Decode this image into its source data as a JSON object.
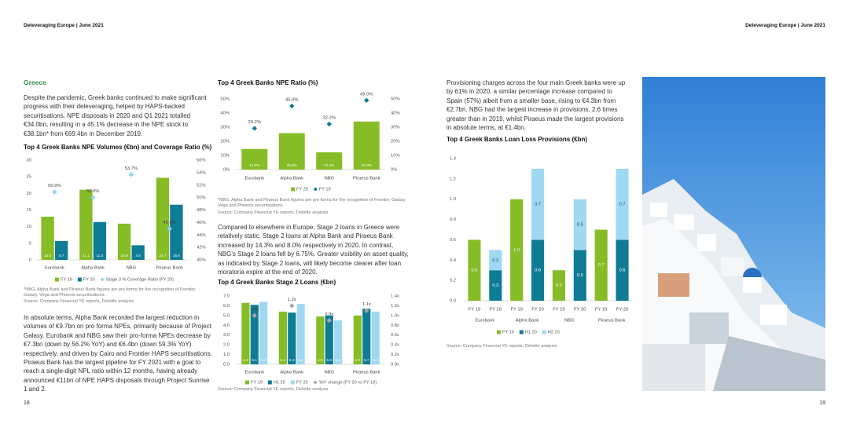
{
  "header": {
    "left": "Deleveraging Europe | June 2021",
    "right": "Deleveraging Europe | June 2021"
  },
  "section": "Greece",
  "paragraphs": [
    "Despite the pandemic, Greek banks continued to make significant progress with their deleveraging, helped by HAPS-backed securitisations. NPE disposals in 2020 and Q1 2021 totalled €34.0bn, resulting in a 45.1% decrease in the NPE stock to €38.1bn* from €69.4bn in December 2019.",
    "In absolute terms, Alpha Bank recorded the largest reduction in volumes of €9.7bn on pro forma NPEs, primarily because of Project Galaxy. Eurobank and NBG saw their pro-forma NPEs decrease by €7.3bn (down by 56.2% YoY) and €6.4bn (down 59.3% YoY) respectively, and driven by Cairo and Frontier HAPS securitisations. Piraeus Bank has the largest pipeline for FY 2021 with a goal to reach a single-digit NPL ratio within 12 months, having already announced €11bn of NPE HAPS disposals through Project Sunrise 1 and 2.",
    "Compared to elsewhere in Europe, Stage 2 loans in Greece were relatively static. Stage 2 loans at Alpha Bank and Piraeus Bank increased by 14.3% and 8.0% respectively in 2020. In contrast, NBG's Stage 2 loans fell by 6.75%. Greater visibility on asset quality, as indicated by Stage 2 loans, will likely become clearer after loan moratoria expire at the end of 2020.",
    "Provisioning charges across the four main Greek banks were up by 61% in 2020, a similar percentage increase compared to Spain (57%) albeit from a smaller base, rising to €4.3bn from €2.7bn. NBG had the largest increase in provisions, 2.6 times greater than in 2019, whilst Piraeus made the largest provisions in absolute terms, at €1.4bn."
  ],
  "page_numbers": [
    "18",
    "19"
  ],
  "charts": [
    {
      "type": "bar",
      "title": "Top 4 Greek Banks NPE Volumes (€bn) and Coverage Ratio (%)",
      "categories": [
        "Eurobank",
        "Alpha Bank",
        "NBG",
        "Piraeus Bank"
      ],
      "series": [
        {
          "name": "FY 19",
          "color": "#86bc25",
          "values": [
            13.0,
            21.1,
            10.9,
            24.7
          ],
          "value_labels": [
            "13.0",
            "21.1",
            "10.9",
            "24.7"
          ]
        },
        {
          "name": "FY 20",
          "color": "#0f7c96",
          "values": [
            5.7,
            11.4,
            4.4,
            16.6
          ],
          "value_labels": [
            "5.7",
            "11.4",
            "4.4",
            "16.6"
          ]
        },
        {
          "name": "Stage 3 % Coverage Ratio (FY 20)",
          "color": "#8fd3f0",
          "marker": "diamond",
          "axis": "y2",
          "values": [
            50.9,
            50.0,
            53.7,
            45.0
          ],
          "value_labels": [
            "50.9%",
            "50.0%",
            "53.7%",
            "45.0%"
          ]
        }
      ],
      "ylim": [
        0,
        30
      ],
      "yticks": [
        0,
        5,
        10,
        15,
        20,
        25,
        30
      ],
      "y2lim": [
        40,
        56
      ],
      "y2ticks": [
        {
          "value": 40,
          "label": "40%"
        },
        {
          "value": 42,
          "label": "42%"
        },
        {
          "value": 44,
          "label": "44%"
        },
        {
          "value": 46,
          "label": "46%"
        },
        {
          "value": 48,
          "label": "48%"
        },
        {
          "value": 50,
          "label": "50%"
        },
        {
          "value": 52,
          "label": "52%"
        },
        {
          "value": 54,
          "label": "54%"
        },
        {
          "value": 56,
          "label": "56%"
        }
      ],
      "note": "*NBG, Alpha Bank and Piraeus Bank figures are pro forma for the recognition of Frontier, Galaxy, Vega and Phoenix securitisations.",
      "source": "Source: Company Financial YE reports, Deloitte analysis"
    },
    {
      "type": "bar",
      "title": "Top 4 Greek Banks NPE Ratio (%)",
      "categories": [
        "Eurobank",
        "Alpha Bank",
        "NBG",
        "Piraeus Bank"
      ],
      "series": [
        {
          "name": "FY 20",
          "color": "#86bc25",
          "values": [
            14.6,
            25.8,
            12.2,
            34.0
          ],
          "value_labels": [
            "14.6%",
            "25.8%",
            "12.2%",
            "34.0%"
          ]
        },
        {
          "name": "FY 19",
          "color": "#0f7c96",
          "marker": "diamond",
          "values": [
            29.2,
            45.0,
            32.2,
            49.0
          ],
          "value_labels": [
            "29.2%",
            "45.0%",
            "32.2%",
            "49.0%"
          ]
        }
      ],
      "ylim": [
        0,
        50
      ],
      "yticks": [
        {
          "value": 0,
          "label": "0%"
        },
        {
          "value": 10,
          "label": "10%"
        },
        {
          "value": 20,
          "label": "20%"
        },
        {
          "value": 30,
          "label": "30%"
        },
        {
          "value": 40,
          "label": "40%"
        },
        {
          "value": 50,
          "label": "50%"
        }
      ],
      "y2lim": [
        0,
        50
      ],
      "y2ticks": [
        {
          "value": 0,
          "label": "0%"
        },
        {
          "value": 10,
          "label": "10%"
        },
        {
          "value": 20,
          "label": "20%"
        },
        {
          "value": 30,
          "label": "30%"
        },
        {
          "value": 40,
          "label": "40%"
        },
        {
          "value": 50,
          "label": "50%"
        }
      ],
      "note": "*NBG, Alpha Bank and Piraeus Bank figures are pro forma for the recognition of Frontier, Galaxy, Vega and Phoenix securitisations.",
      "source": "Source: Company Financial YE reports, Deloitte analysis"
    },
    {
      "type": "bar",
      "title": "Top 4 Greek Banks Stage 2 Loans (€bn)",
      "categories": [
        "Eurobank",
        "Alpha Bank",
        "NBG",
        "Piraeus Bank"
      ],
      "series": [
        {
          "name": "FY 19",
          "color": "#86bc25",
          "values": [
            6.3,
            5.4,
            4.9,
            5.0
          ],
          "value_labels": [
            "6.3",
            "5.4",
            "4.9",
            "5.0"
          ]
        },
        {
          "name": "H1 20",
          "color": "#0f7c96",
          "values": [
            6.1,
            5.3,
            5.0,
            5.7
          ],
          "value_labels": [
            "6.1",
            "5.3",
            "5.0",
            "5.7"
          ]
        },
        {
          "name": "FY 20",
          "color": "#9fd8f3",
          "values": [
            6.4,
            6.2,
            4.5,
            5.4
          ],
          "value_labels": [
            "6.4",
            "6.2",
            "4.5",
            "5.4"
          ]
        },
        {
          "name": "YoY change (FY 20 vs FY 19)",
          "color": "#a6a6a6",
          "marker": "diamond",
          "axis": "y2",
          "values": [
            1.0,
            1.2,
            0.9,
            1.1
          ],
          "value_labels": [
            "1.0x",
            "1.2x",
            "0.9x",
            "1.1x"
          ]
        }
      ],
      "ylim": [
        0,
        7
      ],
      "yticks": [
        {
          "value": 0,
          "label": "0.0"
        },
        {
          "value": 1,
          "label": "1.0"
        },
        {
          "value": 2,
          "label": "2.0"
        },
        {
          "value": 3,
          "label": "3.0"
        },
        {
          "value": 4,
          "label": "4.0"
        },
        {
          "value": 5,
          "label": "5.0"
        },
        {
          "value": 6,
          "label": "6.0"
        },
        {
          "value": 7,
          "label": "7.0"
        }
      ],
      "y2lim": [
        0,
        1.4
      ],
      "y2ticks": [
        {
          "value": 0,
          "label": "0.0x"
        },
        {
          "value": 0.2,
          "label": "0.2x"
        },
        {
          "value": 0.4,
          "label": "0.4x"
        },
        {
          "value": 0.6,
          "label": "0.6x"
        },
        {
          "value": 0.8,
          "label": "0.8x"
        },
        {
          "value": 1.0,
          "label": "1.0x"
        },
        {
          "value": 1.2,
          "label": "1.2x"
        },
        {
          "value": 1.4,
          "label": "1.4x"
        }
      ],
      "source": "Source: Company Financial YE reports, Deloitte analysis"
    },
    {
      "type": "stacked_bar",
      "title": "Top 4 Greek Banks Loan Loss Provisions (€bn)",
      "categories": [
        "FY 19",
        "FY 20",
        "FY 19",
        "FY 20",
        "FY 19",
        "FY 20",
        "FY 19",
        "FY 20"
      ],
      "groups": [
        "Eurobank",
        "Alpha Bank",
        "NBG",
        "Piraeus Bank"
      ],
      "series": [
        {
          "name": "FY 19",
          "color": "#86bc25",
          "values": [
            0.6,
            null,
            1.0,
            null,
            0.3,
            null,
            0.7,
            null
          ],
          "value_labels": [
            "0.6",
            null,
            "1.0",
            null,
            "0.3",
            null,
            "0.7",
            null
          ]
        },
        {
          "name": "H1 20",
          "color": "#0f7c96",
          "values": [
            null,
            0.3,
            null,
            0.6,
            null,
            0.5,
            null,
            0.6
          ],
          "value_labels": [
            null,
            "0.3",
            null,
            "0.6",
            null,
            "0.5",
            null,
            "0.6"
          ]
        },
        {
          "name": "H2 20",
          "color": "#9fd8f3",
          "values": [
            null,
            0.2,
            null,
            0.7,
            null,
            0.5,
            null,
            0.7
          ],
          "value_labels": [
            null,
            "0.2",
            null,
            "0.7",
            null,
            "0.5",
            null,
            "0.7"
          ]
        }
      ],
      "ylim": [
        0,
        1.4
      ],
      "yticks": [
        {
          "value": 0,
          "label": "0.0"
        },
        0.2,
        0.4,
        0.6,
        0.8,
        {
          "value": 1.0,
          "label": "1.0"
        },
        1.2,
        1.4
      ],
      "source": "Source: Company Financial YE reports, Deloitte analysis"
    }
  ]
}
